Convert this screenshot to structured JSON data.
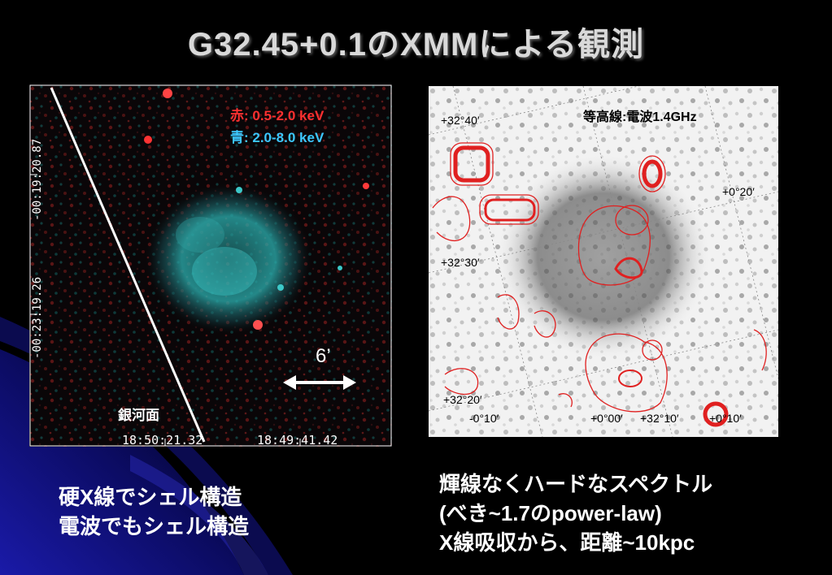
{
  "slide": {
    "title": "G32.45+0.1のXMMによる観測"
  },
  "xray_image": {
    "legend_red": "赤: 0.5-2.0 keV",
    "legend_blue": "青: 2.0-8.0 keV",
    "scale_label": "6’",
    "galactic_plane_label": "銀河面",
    "ra_ticks": [
      "18:50:21.32",
      "18:49:41.42"
    ],
    "dec_ticks": [
      "-00:19:20.87",
      "-00:23:19.26"
    ]
  },
  "radio_image": {
    "contour_label": "等高線:電波1.4GHz",
    "coords": {
      "lat_40": "+32°40′",
      "lat_30": "+32°30′",
      "lat_20": "+32°20′",
      "gb_20": "+0°20′",
      "gb_m10": "-0°10′",
      "gb_00": "+0°00′",
      "lon_10": "+32°10′",
      "gb_10": "+0°10′"
    }
  },
  "captions": {
    "left_line1": "硬X線でシェル構造",
    "left_line2": "電波でもシェル構造",
    "right_line1": "輝線なくハードなスペクトル",
    "right_line2": "(べき~1.7のpower-law)",
    "right_line3": "X線吸収から、距離~10kpc"
  },
  "colors": {
    "background": "#000000",
    "title": "#d9d9d9",
    "legend_red": "#ff3030",
    "legend_blue": "#3cc8ff",
    "contour": "#e02020"
  }
}
